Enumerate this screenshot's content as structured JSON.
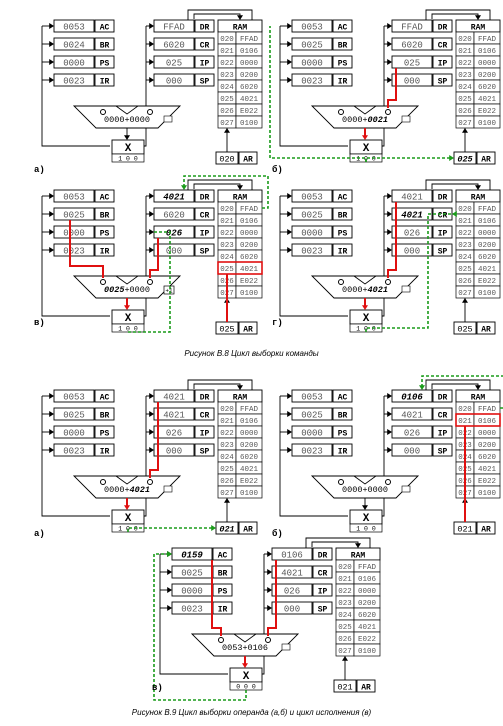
{
  "captions": {
    "fig1": "Рисунок В.8 Цикл выборки команды",
    "fig2": "Рисунок В.9 Цикл выборки операнда (а,б) и цикл исполнения (в)"
  },
  "colors": {
    "bus": "#e01010",
    "ctrl": "#1a9b1a",
    "frame": "#000000"
  },
  "ram": {
    "title": "RAM",
    "addrs": [
      "020",
      "021",
      "022",
      "023",
      "024",
      "025",
      "026",
      "027"
    ],
    "vals": [
      "FFAD",
      "0106",
      "0000",
      "0200",
      "6020",
      "4021",
      "E022",
      "0100"
    ]
  },
  "reg_names": {
    "ac": "AC",
    "br": "BR",
    "ps": "PS",
    "ir": "IR",
    "dr": "DR",
    "cr": "CR",
    "ip": "IP",
    "sp": "SP",
    "ar": "AR"
  },
  "panels": [
    {
      "id": "B8a",
      "tag": "а)",
      "ac": "0053",
      "br": "0024",
      "ps": "0000",
      "ir": "0023",
      "dr": "FFAD",
      "cr": "6020",
      "ip": "025",
      "sp": "000",
      "ar": "020",
      "alu_l": "0000",
      "alu_op": "+",
      "alu_r": "0000",
      "nz": "1 0 0"
    },
    {
      "id": "B8b",
      "tag": "б)",
      "ac": "0053",
      "br": "0025",
      "ps": "0000",
      "ir": "0023",
      "dr": "FFAD",
      "cr": "6020",
      "ip": "025",
      "sp": "000",
      "ar": "025",
      "alu_l": "0000",
      "alu_op": "+",
      "alu_r": "0021",
      "nz": "1 0 0"
    },
    {
      "id": "B8c",
      "tag": "в)",
      "ac": "0053",
      "br": "0025",
      "ps": "0000",
      "ir": "0023",
      "dr": "4021",
      "cr": "6020",
      "ip": "026",
      "sp": "000",
      "ar": "025",
      "alu_l": "0025",
      "alu_op": "+",
      "alu_r": "0000",
      "plus1": "+1",
      "nz": "1 0 0"
    },
    {
      "id": "B8d",
      "tag": "г)",
      "ac": "0053",
      "br": "0025",
      "ps": "0000",
      "ir": "0023",
      "dr": "4021",
      "cr": "4021",
      "ip": "026",
      "sp": "000",
      "ar": "025",
      "alu_l": "0000",
      "alu_op": "+",
      "alu_r": "4021",
      "nz": "1 0 0"
    },
    {
      "id": "B9a",
      "tag": "а)",
      "ac": "0053",
      "br": "0025",
      "ps": "0000",
      "ir": "0023",
      "dr": "4021",
      "cr": "4021",
      "ip": "026",
      "sp": "000",
      "ar": "021",
      "alu_l": "0000",
      "alu_op": "+",
      "alu_r": "4021",
      "nz": "1 0 0"
    },
    {
      "id": "B9b",
      "tag": "б)",
      "ac": "0053",
      "br": "0025",
      "ps": "0000",
      "ir": "0023",
      "dr": "0106",
      "cr": "4021",
      "ip": "026",
      "sp": "000",
      "ar": "021",
      "alu_l": "0000",
      "alu_op": "+",
      "alu_r": "0000",
      "nz": "1 0 0"
    },
    {
      "id": "B9c",
      "tag": "в)",
      "ac": "0159",
      "br": "0025",
      "ps": "0000",
      "ir": "0023",
      "dr": "0106",
      "cr": "4021",
      "ip": "026",
      "sp": "000",
      "ar": "021",
      "alu_l": "0053",
      "alu_op": "+",
      "alu_r": "0106",
      "nz": "0 0 0"
    }
  ]
}
